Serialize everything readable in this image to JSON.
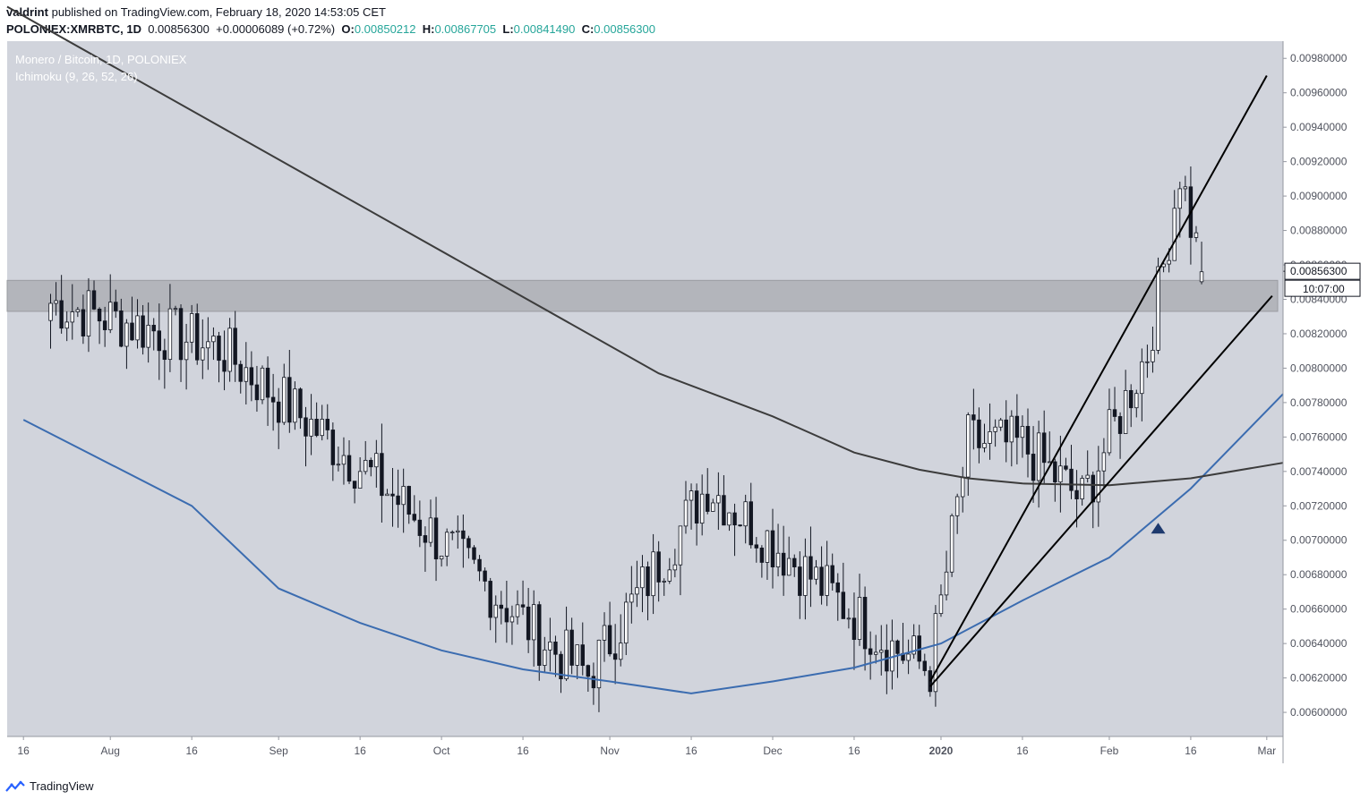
{
  "header": {
    "author": "valdrint",
    "published_text": "published on TradingView.com, February 18, 2020 14:53:05 CET",
    "symbol": "POLONIEX:XMRBTC, 1D",
    "last_price": "0.00856300",
    "change": "+0.00006089 (+0.72%)",
    "o_label": "O:",
    "o_value": "0.00850212",
    "h_label": "H:",
    "h_value": "0.00867705",
    "l_label": "L:",
    "l_value": "0.00841490",
    "c_label": "C:",
    "c_value": "0.00856300"
  },
  "legend": {
    "title": "Monero / Bitcoin, 1D, POLONIEX",
    "indicator": "Ichimoku (9, 26, 52, 26)"
  },
  "footer": {
    "brand": "TradingView"
  },
  "colors": {
    "background": "#d1d4dc",
    "up_candle": "#ffffff",
    "down_candle": "#131722",
    "ma_blue": "#3b6cb0",
    "ma_dark": "#3c3c3c",
    "zone": "#b3b5bb",
    "marker": "#1e3a6e"
  },
  "chart_data": {
    "type": "candlestick",
    "title": "Monero / Bitcoin, 1D, POLONIEX",
    "ylim": [
      0.00586,
      0.0099
    ],
    "y_ticks": [
      "0.00980000",
      "0.00960000",
      "0.00940000",
      "0.00920000",
      "0.00900000",
      "0.00880000",
      "0.00860000",
      "0.00840000",
      "0.00820000",
      "0.00800000",
      "0.00780000",
      "0.00760000",
      "0.00740000",
      "0.00720000",
      "0.00700000",
      "0.00680000",
      "0.00660000",
      "0.00640000",
      "0.00620000",
      "0.00600000"
    ],
    "x_ticks": [
      "16",
      "Aug",
      "16",
      "Sep",
      "16",
      "Oct",
      "16",
      "Nov",
      "16",
      "Dec",
      "16",
      "2020",
      "16",
      "Feb",
      "16",
      "Mar"
    ],
    "x_tick_dates": [
      "2019-07-16",
      "2019-08-01",
      "2019-08-16",
      "2019-09-01",
      "2019-09-16",
      "2019-10-01",
      "2019-10-16",
      "2019-11-01",
      "2019-11-16",
      "2019-12-01",
      "2019-12-16",
      "2020-01-01",
      "2020-01-16",
      "2020-02-01",
      "2020-02-16",
      "2020-03-01"
    ],
    "x_range": [
      "2019-07-13",
      "2020-03-04"
    ],
    "price_label": "0.00856300",
    "countdown_label": "10:07:00",
    "resistance_zone": [
      0.00833,
      0.00851
    ],
    "key_points": [
      {
        "date": "2019-07-21",
        "close": 0.00838
      },
      {
        "date": "2019-08-21",
        "close": 0.00812
      },
      {
        "date": "2019-09-19",
        "close": 0.00735
      },
      {
        "date": "2019-10-21",
        "close": 0.00638
      },
      {
        "date": "2019-10-28",
        "close": 0.00622
      },
      {
        "date": "2019-11-19",
        "close": 0.00732
      },
      {
        "date": "2019-12-22",
        "close": 0.0064
      },
      {
        "date": "2019-12-30",
        "close": 0.00625
      },
      {
        "date": "2020-01-06",
        "close": 0.00757
      },
      {
        "date": "2020-01-16",
        "close": 0.00755
      },
      {
        "date": "2020-01-27",
        "close": 0.00723
      },
      {
        "date": "2020-02-08",
        "close": 0.0081
      },
      {
        "date": "2020-02-11",
        "close": 0.0086
      },
      {
        "date": "2020-02-14",
        "close": 0.00915
      },
      {
        "date": "2020-02-16",
        "close": 0.00885
      },
      {
        "date": "2020-02-18",
        "close": 0.00856
      }
    ],
    "series": [
      {
        "values": [
          [
            "2019-07-16",
            0.0077
          ],
          [
            "2019-08-16",
            0.0072
          ],
          [
            "2019-09-01",
            0.00672
          ],
          [
            "2019-09-16",
            0.00652
          ],
          [
            "2019-10-01",
            0.00636
          ],
          [
            "2019-10-16",
            0.00625
          ],
          [
            "2019-11-01",
            0.00618
          ],
          [
            "2019-11-16",
            0.00611
          ],
          [
            "2019-12-01",
            0.00618
          ],
          [
            "2019-12-16",
            0.00626
          ],
          [
            "2020-01-01",
            0.0064
          ],
          [
            "2020-01-16",
            0.00665
          ],
          [
            "2020-02-01",
            0.0069
          ],
          [
            "2020-02-16",
            0.0073
          ],
          [
            "2020-03-04",
            0.00785
          ]
        ]
      },
      {
        "values": [
          [
            "2019-07-13",
            0.0101
          ],
          [
            "2019-11-10",
            0.00797
          ],
          [
            "2019-12-01",
            0.00772
          ],
          [
            "2019-12-16",
            0.00751
          ],
          [
            "2019-12-28",
            0.00741
          ],
          [
            "2020-01-06",
            0.00736
          ],
          [
            "2020-01-16",
            0.00733
          ],
          [
            "2020-02-01",
            0.00732
          ],
          [
            "2020-02-16",
            0.00736
          ],
          [
            "2020-03-04",
            0.00745
          ]
        ]
      }
    ],
    "channel_lines": [
      [
        [
          "2019-12-30",
          0.00618
        ],
        [
          "2020-03-01",
          0.0097
        ]
      ],
      [
        [
          "2019-12-30",
          0.00615
        ],
        [
          "2020-03-02",
          0.00842
        ]
      ]
    ],
    "marker": {
      "date": "2020-02-10",
      "value": 0.00707
    }
  }
}
